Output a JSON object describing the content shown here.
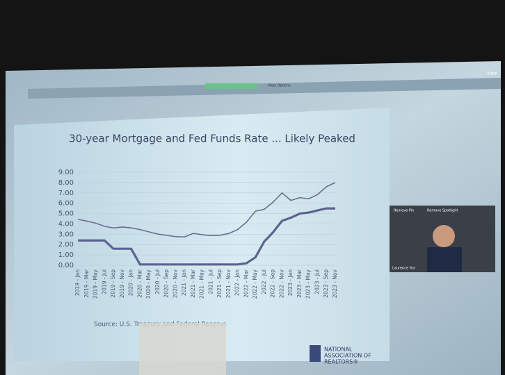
{
  "chart_data": {
    "type": "line",
    "title": "30-year Mortgage and Fed Funds Rate ... Likely Peaked",
    "source": "Source: U.S. Treasury and Federal Reserve",
    "categories": [
      "2019 - Jan",
      "2019 - Mar",
      "2019 - May",
      "2019 - Jul",
      "2019 - Sep",
      "2019 - Nov",
      "2020 - Jan",
      "2020 - Mar",
      "2020 - May",
      "2020 - Jul",
      "2020 - Sep",
      "2020 - Nov",
      "2021 - Jan",
      "2021 - Mar",
      "2021 - May",
      "2021 - Jul",
      "2021 - Sep",
      "2021 - Nov",
      "2022 - Jan",
      "2022 - Mar",
      "2022 - May",
      "2022 - Jul",
      "2022 - Sep",
      "2022 - Nov",
      "2023 - Jan",
      "2023 - Mar",
      "2023 - May",
      "2023 - Jul",
      "2023 - Sep",
      "2023 - Nov"
    ],
    "series": [
      {
        "color": "#6b6f8e",
        "width": 1.6,
        "values": [
          4.45,
          4.27,
          4.07,
          3.77,
          3.61,
          3.7,
          3.62,
          3.45,
          3.23,
          3.02,
          2.89,
          2.77,
          2.74,
          3.08,
          2.96,
          2.87,
          2.9,
          3.07,
          3.45,
          4.17,
          5.23,
          5.41,
          6.11,
          7.0,
          6.27,
          6.54,
          6.43,
          6.84,
          7.6,
          8.0
        ]
      },
      {
        "color": "#5d6190",
        "width": 3.2,
        "values": [
          2.4,
          2.4,
          2.4,
          2.4,
          1.6,
          1.6,
          1.6,
          0.08,
          0.08,
          0.08,
          0.08,
          0.08,
          0.08,
          0.08,
          0.08,
          0.08,
          0.08,
          0.08,
          0.08,
          0.2,
          0.77,
          2.3,
          3.2,
          4.3,
          4.6,
          5.0,
          5.1,
          5.3,
          5.5,
          5.5
        ]
      }
    ],
    "ylim": [
      0,
      9
    ],
    "yticks": [
      {
        "value": 0,
        "label": "0.00"
      },
      {
        "value": 1,
        "label": "1.00"
      },
      {
        "value": 2,
        "label": "2.00"
      },
      {
        "value": 3,
        "label": "3.00"
      },
      {
        "value": 4,
        "label": "4.00"
      },
      {
        "value": 5,
        "label": "5.00"
      },
      {
        "value": 6,
        "label": "6.00"
      },
      {
        "value": 7,
        "label": "7.00"
      },
      {
        "value": 8,
        "label": "8.00"
      },
      {
        "value": 9,
        "label": "9.00"
      }
    ],
    "grid": true
  },
  "toolbar": {
    "view_options": "View Options",
    "view": "View"
  },
  "video": {
    "remove_pin": "Remove Pin",
    "remove_spotlight": "Remove Spotlight",
    "speaker": "Laurence Yun"
  },
  "logo": {
    "line1": "NATIONAL",
    "line2": "ASSOCIATION OF",
    "line3": "REALTORS®"
  }
}
